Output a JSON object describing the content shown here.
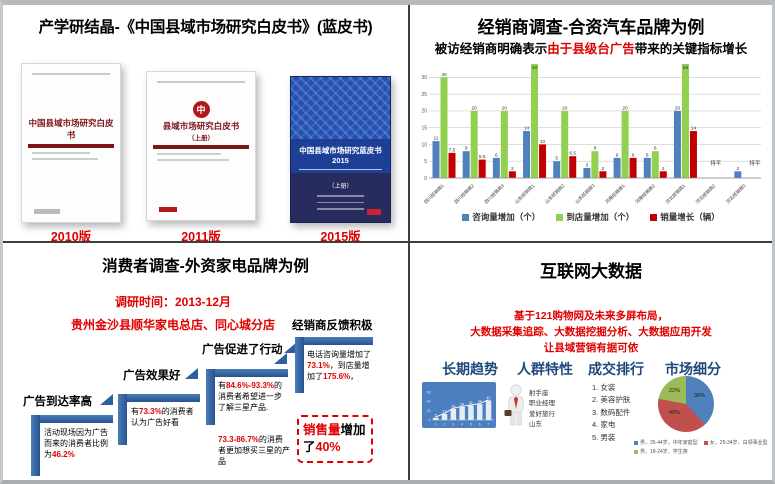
{
  "top_left": {
    "title": "产学研结晶-《中国县域市场研究白皮书》(蓝皮书)",
    "books": [
      {
        "cover_title": "中国县域市场研究白皮书",
        "edition": "2010版"
      },
      {
        "cover_title": "县域市场研究白皮书",
        "cover_sub": "（上册）",
        "logo_char": "中",
        "edition": "2011版"
      },
      {
        "cover_title": "中国县域市场研究蓝皮书2015",
        "cover_sub": "（上册）",
        "edition": "2015版"
      }
    ]
  },
  "top_right": {
    "title": "经销商调查-合资汽车品牌为例",
    "subtitle_parts": [
      {
        "t": "被访经销商明确表示"
      },
      {
        "t": "由于县级台广告",
        "r": true
      },
      {
        "t": "带来的关键指标增长"
      }
    ]
  },
  "bottom_left": {
    "title": "消费者调查-外资家电品牌为例",
    "survey_time": "调研时间：2013-12月",
    "survey_site": "贵州金沙县顺华家电总店、同心城分店",
    "steps": [
      {
        "header": "广告到达率高",
        "body": [
          {
            "t": "活动现场因为广告而来的消费者比例为"
          },
          {
            "t": "46.2%",
            "r": true
          }
        ]
      },
      {
        "header": "广告效果好",
        "body": [
          {
            "t": "有"
          },
          {
            "t": "73.3%",
            "r": true
          },
          {
            "t": "的消费者认为广告好看"
          }
        ]
      },
      {
        "header": "广告促进了行动",
        "body": [
          {
            "t": "有"
          },
          {
            "t": "84.6%-93.3%",
            "r": true
          },
          {
            "t": "的消费者希望进一步了解三星产品."
          }
        ],
        "body2": [
          {
            "t": "73.3-86.7%",
            "r": true
          },
          {
            "t": "的消费者更加想买三星的产品"
          }
        ]
      },
      {
        "header": "经销商反馈积极",
        "body": [
          {
            "t": "电话咨询量增加了"
          },
          {
            "t": "73.1%",
            "r": true
          },
          {
            "t": "，到店量增加了"
          },
          {
            "t": "175.6%",
            "r": true
          },
          {
            "t": "，"
          }
        ],
        "result": [
          {
            "t": "销售量",
            "r": true
          },
          {
            "t": "增加了"
          },
          {
            "t": "40%",
            "r": true
          }
        ]
      }
    ]
  },
  "bottom_right": {
    "title": "互联网大数据",
    "intro_lines": [
      "基于121购物网及未来多屏布局，",
      "大数据采集追踪、大数据挖掘分析、大数据应用开发",
      "让县域营销有据可依"
    ],
    "col_headers": [
      "长期趋势",
      "人群特性",
      "成交排行",
      "市场细分"
    ],
    "audience_traits": [
      "射手座",
      "职业经理",
      "爱好旅行",
      "山东"
    ],
    "ranking": [
      "女装",
      "美容护肤",
      "数码配件",
      "家电",
      "男装"
    ]
  },
  "chart_data": [
    {
      "type": "bar",
      "title": "被访经销商明确表示由于县级台广告带来的关键指标增长",
      "categories": [
        "四川经销商1",
        "四川经销商2",
        "四川经销商3",
        "山东经销商1",
        "山东经销商2",
        "山东经销商3",
        "河南经销商1",
        "河南经销商2",
        "河北经销商1",
        "河北经销商2",
        "河北经销商3"
      ],
      "series": [
        {
          "name": "咨询量增加（个）",
          "color": "#4f81bd",
          "values": [
            11,
            8,
            6,
            14,
            5,
            3,
            6,
            6,
            20,
            null,
            2
          ]
        },
        {
          "name": "到店量增加（个）",
          "color": "#92d050",
          "values": [
            30,
            20,
            20,
            40,
            20,
            8,
            20,
            8,
            56,
            null,
            null
          ]
        },
        {
          "name": "销量增长（辆）",
          "color": "#c00000",
          "values": [
            7.5,
            5.5,
            2,
            10,
            6.5,
            2,
            6,
            2,
            14,
            null,
            null
          ]
        }
      ],
      "flat_labels": [
        null,
        null,
        null,
        null,
        null,
        null,
        null,
        null,
        null,
        "持平",
        "持平"
      ],
      "ylim": [
        0,
        30
      ],
      "ytick_step": 5,
      "grid": true,
      "legend_position": "bottom",
      "note": "green bars 40 and 56 overflow the 0-30 axis and are clipped at plot top"
    },
    {
      "type": "bar-line",
      "title": "长期趋势",
      "x": [
        1,
        2,
        3,
        4,
        5,
        6,
        7
      ],
      "values": [
        5,
        13,
        24,
        28,
        31,
        34,
        42
      ],
      "yticks": [
        0,
        20,
        40,
        60
      ],
      "bar_color": "#ffffff",
      "bg_color": "#4d7ebf"
    },
    {
      "type": "pie",
      "title": "市场细分",
      "slices": [
        {
          "label": "男，35-44岁，中年家庭型",
          "pct": "38%",
          "value": 38,
          "color": "#4f81bd"
        },
        {
          "label": "女，25-34岁，白领事业型",
          "pct": "40%",
          "value": 40,
          "color": "#c0504d"
        },
        {
          "label": "男，18-24岁，学生族",
          "pct": "22%",
          "value": 22,
          "color": "#9bbb59"
        }
      ],
      "legend_position": "bottom"
    }
  ]
}
